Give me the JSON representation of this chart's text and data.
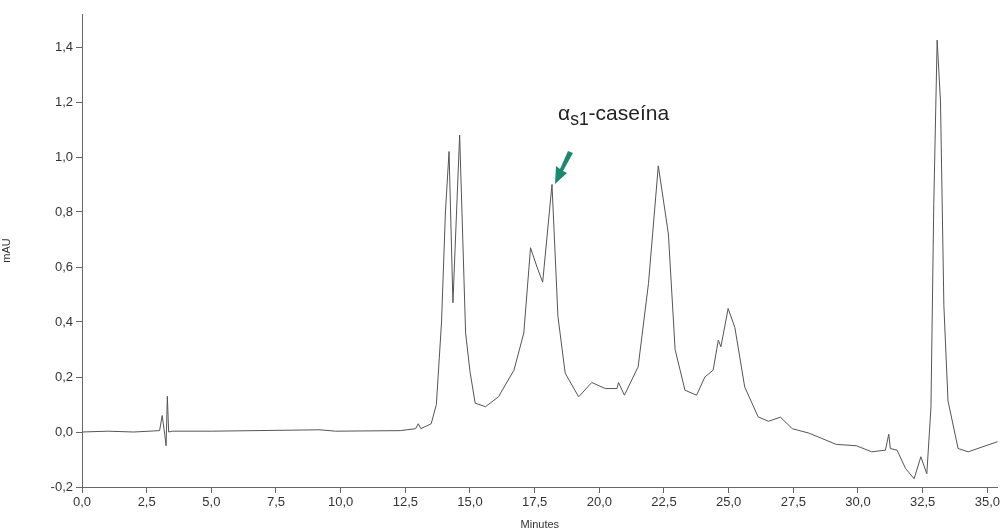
{
  "chart_data": {
    "type": "line",
    "xlabel": "Minutes",
    "ylabel": "mAU",
    "xlim": [
      0,
      35.4
    ],
    "ylim": [
      -0.2,
      1.52
    ],
    "xticks": [
      {
        "value": 0,
        "label": "0,0"
      },
      {
        "value": 2.5,
        "label": "2,5"
      },
      {
        "value": 5,
        "label": "5,0"
      },
      {
        "value": 7.5,
        "label": "7,5"
      },
      {
        "value": 10,
        "label": "10,0"
      },
      {
        "value": 12.5,
        "label": "12,5"
      },
      {
        "value": 15,
        "label": "15,0"
      },
      {
        "value": 17.5,
        "label": "17,5"
      },
      {
        "value": 20,
        "label": "20,0"
      },
      {
        "value": 22.5,
        "label": "22,5"
      },
      {
        "value": 25,
        "label": "25,0"
      },
      {
        "value": 27.5,
        "label": "27,5"
      },
      {
        "value": 30,
        "label": "30,0"
      },
      {
        "value": 32.5,
        "label": "32,5"
      },
      {
        "value": 35,
        "label": "35,0"
      }
    ],
    "yticks": [
      {
        "value": -0.2,
        "label": "-0,2"
      },
      {
        "value": 0,
        "label": "0,0"
      },
      {
        "value": 0.2,
        "label": "0,2"
      },
      {
        "value": 0.4,
        "label": "0,4"
      },
      {
        "value": 0.6,
        "label": "0,6"
      },
      {
        "value": 0.8,
        "label": "0,8"
      },
      {
        "value": 1,
        "label": "1,0"
      },
      {
        "value": 1.2,
        "label": "1,2"
      },
      {
        "value": 1.4,
        "label": "1,4"
      }
    ],
    "marker": "none",
    "line_style": "solid",
    "annotations": [
      {
        "text": "α$_{s1}$-caseína",
        "x": 18.17,
        "y": 0.9
      }
    ],
    "series": [
      {
        "color": "#555555",
        "x": [
          0,
          1,
          2,
          3.0,
          3.1,
          3.2,
          3.25,
          3.3,
          3.35,
          3.5,
          5,
          9.2,
          9.8,
          12.3,
          12.9,
          13.0,
          13.1,
          13.5,
          13.7,
          13.9,
          14.05,
          14.19,
          14.34,
          14.6,
          14.83,
          15.0,
          15.2,
          15.6,
          16.1,
          16.7,
          17.08,
          17.34,
          17.59,
          17.81,
          18.17,
          18.4,
          18.68,
          19.2,
          19.71,
          20.23,
          20.68,
          20.74,
          20.97,
          21.5,
          21.9,
          22.28,
          22.67,
          22.93,
          23.31,
          23.76,
          24.08,
          24.4,
          24.6,
          24.7,
          24.98,
          25.24,
          25.62,
          26.14,
          26.54,
          27.0,
          27.46,
          28.1,
          29.16,
          29.94,
          30.53,
          31.06,
          31.19,
          31.25,
          31.51,
          31.84,
          32.17,
          32.43,
          32.66,
          32.82,
          32.93,
          33.06,
          33.19,
          33.32,
          33.48,
          33.87,
          34.26,
          35.4
        ],
        "values": [
          0,
          0.003,
          0.0,
          0.005,
          0.06,
          -0.01,
          -0.05,
          0.13,
          0.0,
          0.003,
          0.003,
          0.008,
          0.003,
          0.005,
          0.012,
          0.03,
          0.012,
          0.03,
          0.1,
          0.4,
          0.8,
          1.02,
          0.47,
          1.08,
          0.36,
          0.22,
          0.105,
          0.092,
          0.128,
          0.225,
          0.36,
          0.67,
          0.6,
          0.545,
          0.9,
          0.42,
          0.214,
          0.128,
          0.18,
          0.158,
          0.158,
          0.18,
          0.134,
          0.237,
          0.54,
          0.968,
          0.72,
          0.3,
          0.152,
          0.134,
          0.2,
          0.225,
          0.334,
          0.31,
          0.449,
          0.38,
          0.164,
          0.055,
          0.039,
          0.054,
          0.012,
          -0.004,
          -0.045,
          -0.05,
          -0.072,
          -0.066,
          -0.008,
          -0.06,
          -0.066,
          -0.133,
          -0.17,
          -0.09,
          -0.152,
          0.088,
          0.83,
          1.425,
          1.2,
          0.46,
          0.113,
          -0.06,
          -0.072,
          -0.035
        ]
      }
    ]
  }
}
